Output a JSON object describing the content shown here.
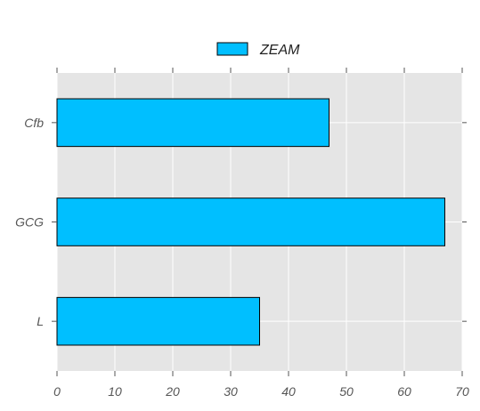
{
  "chart_data": {
    "type": "bar",
    "orientation": "horizontal",
    "categories": [
      "L",
      "GCG",
      "Cfb"
    ],
    "series": [
      {
        "name": "ZEAM",
        "values": [
          35,
          67,
          47
        ],
        "color": "#00BFFF"
      }
    ],
    "xlim": [
      0,
      70
    ],
    "x_ticks": [
      0,
      10,
      20,
      30,
      40,
      50,
      60,
      70
    ],
    "grid": true,
    "legend_position": "top-center",
    "colors": {
      "plot_background": "#E5E5E5",
      "grid": "#FFFFFF",
      "bar_edge": "#000000",
      "tick_text": "#555555"
    }
  }
}
